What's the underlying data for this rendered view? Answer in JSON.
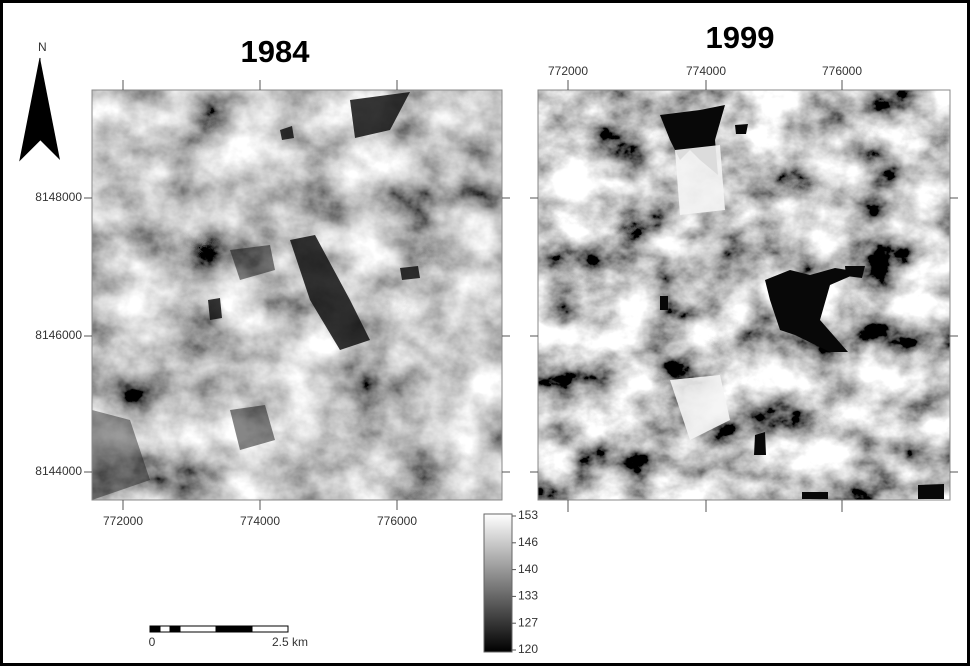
{
  "north_arrow": {
    "label": "N"
  },
  "panels": [
    {
      "title": "1984",
      "x_ticks": [
        "772000",
        "774000",
        "776000"
      ],
      "y_ticks": [
        "8148000",
        "8146000",
        "8144000"
      ]
    },
    {
      "title": "1999",
      "x_ticks": [
        "772000",
        "774000",
        "776000"
      ]
    }
  ],
  "colorbar": {
    "ticks": [
      "153",
      "146",
      "140",
      "133",
      "127",
      "120"
    ]
  },
  "scale_bar": {
    "labels": [
      "0",
      "2.5 km"
    ]
  }
}
